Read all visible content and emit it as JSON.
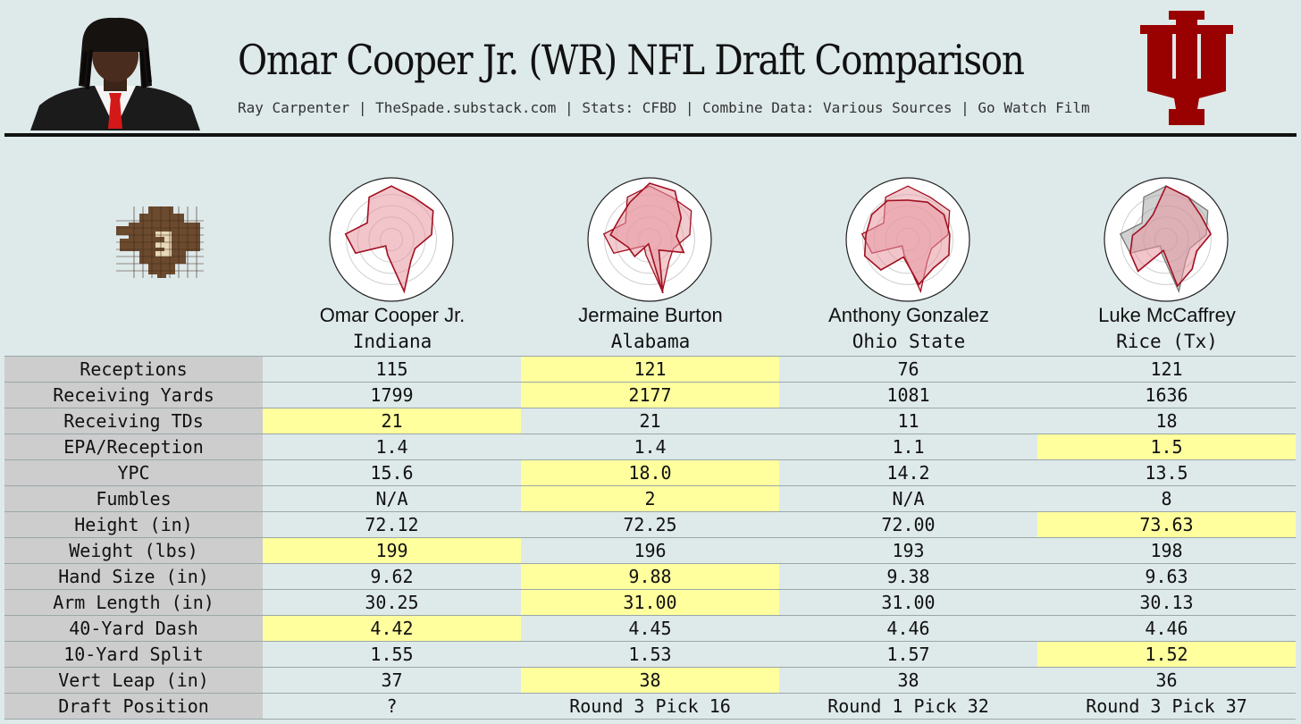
{
  "header": {
    "title": "Omar Cooper Jr. (WR) NFL Draft Comparison",
    "subtitle": "Ray Carpenter | TheSpade.substack.com | Stats: CFBD | Combine Data: Various Sources | Go Watch Film"
  },
  "colors": {
    "background": "#dee9ea",
    "highlight": "#ffff9e",
    "label_bg": "#cdcdcd",
    "iu_crimson": "#990000",
    "radar_fill": "#e8a0a8",
    "radar_line": "#a01020"
  },
  "icons": {
    "team_logo": "indiana-iu-logo",
    "site_logo": "spade-logo",
    "photo": "player-headshot"
  },
  "players": [
    {
      "name": "Omar Cooper Jr.",
      "school": "Indiana"
    },
    {
      "name": "Jermaine Burton",
      "school": "Alabama"
    },
    {
      "name": "Anthony Gonzalez",
      "school": "Ohio State"
    },
    {
      "name": "Luke McCaffrey",
      "school": "Rice (Tx)"
    }
  ],
  "chart_data": {
    "type": "table",
    "columns": [
      "Omar Cooper Jr.",
      "Jermaine Burton",
      "Anthony Gonzalez",
      "Luke McCaffrey"
    ],
    "rows": [
      {
        "label": "Receptions",
        "values": [
          "115",
          "121",
          "76",
          "121"
        ],
        "highlight": [
          1
        ]
      },
      {
        "label": "Receiving Yards",
        "values": [
          "1799",
          "2177",
          "1081",
          "1636"
        ],
        "highlight": [
          1
        ]
      },
      {
        "label": "Receiving TDs",
        "values": [
          "21",
          "21",
          "11",
          "18"
        ],
        "highlight": [
          0
        ]
      },
      {
        "label": "EPA/Reception",
        "values": [
          "1.4",
          "1.4",
          "1.1",
          "1.5"
        ],
        "highlight": [
          3
        ]
      },
      {
        "label": "YPC",
        "values": [
          "15.6",
          "18.0",
          "14.2",
          "13.5"
        ],
        "highlight": [
          1
        ]
      },
      {
        "label": "Fumbles",
        "values": [
          "N/A",
          "2",
          "N/A",
          "8"
        ],
        "highlight": [
          1
        ]
      },
      {
        "label": "Height (in)",
        "values": [
          "72.12",
          "72.25",
          "72.00",
          "73.63"
        ],
        "highlight": [
          3
        ]
      },
      {
        "label": "Weight (lbs)",
        "values": [
          "199",
          "196",
          "193",
          "198"
        ],
        "highlight": [
          0
        ]
      },
      {
        "label": "Hand Size (in)",
        "values": [
          "9.62",
          "9.88",
          "9.38",
          "9.63"
        ],
        "highlight": [
          1
        ]
      },
      {
        "label": "Arm Length (in)",
        "values": [
          "30.25",
          "31.00",
          "31.00",
          "30.13"
        ],
        "highlight": [
          1
        ]
      },
      {
        "label": "40-Yard Dash",
        "values": [
          "4.42",
          "4.45",
          "4.46",
          "4.46"
        ],
        "highlight": [
          0
        ]
      },
      {
        "label": "10-Yard Split",
        "values": [
          "1.55",
          "1.53",
          "1.57",
          "1.52"
        ],
        "highlight": [
          3
        ]
      },
      {
        "label": "Vert Leap (in)",
        "values": [
          "37",
          "38",
          "38",
          "36"
        ],
        "highlight": [
          1
        ]
      },
      {
        "label": "Draft Position",
        "values": [
          "?",
          "Round 3 Pick 16",
          "Round 1 Pick 32",
          "Round 3 Pick 37"
        ],
        "highlight": []
      }
    ],
    "radar": {
      "type": "radar",
      "axes_count": 13,
      "max": 1,
      "comparison_overlay_index": 0,
      "series": [
        {
          "name": "Omar Cooper Jr.",
          "values": [
            0.95,
            0.85,
            0.9,
            0.72,
            0.45,
            0.52,
            0.95,
            0.28,
            0.15,
            0.68,
            0.82,
            0.52,
            0.85
          ]
        },
        {
          "name": "Jermaine Burton",
          "values": [
            1.0,
            0.97,
            0.68,
            0.48,
            0.65,
            0.25,
            0.98,
            0.08,
            0.4,
            0.4,
            0.7,
            0.65,
            0.75
          ]
        },
        {
          "name": "Anthony Gonzalez",
          "values": [
            0.7,
            0.75,
            0.78,
            0.75,
            0.78,
            0.68,
            0.82,
            0.32,
            0.72,
            0.82,
            0.75,
            0.78,
            0.78
          ]
        },
        {
          "name": "Luke McCaffrey",
          "values": [
            0.95,
            0.85,
            0.75,
            0.8,
            0.58,
            0.7,
            0.85,
            0.2,
            0.75,
            0.68,
            0.6,
            0.45,
            0.5
          ]
        }
      ]
    }
  }
}
